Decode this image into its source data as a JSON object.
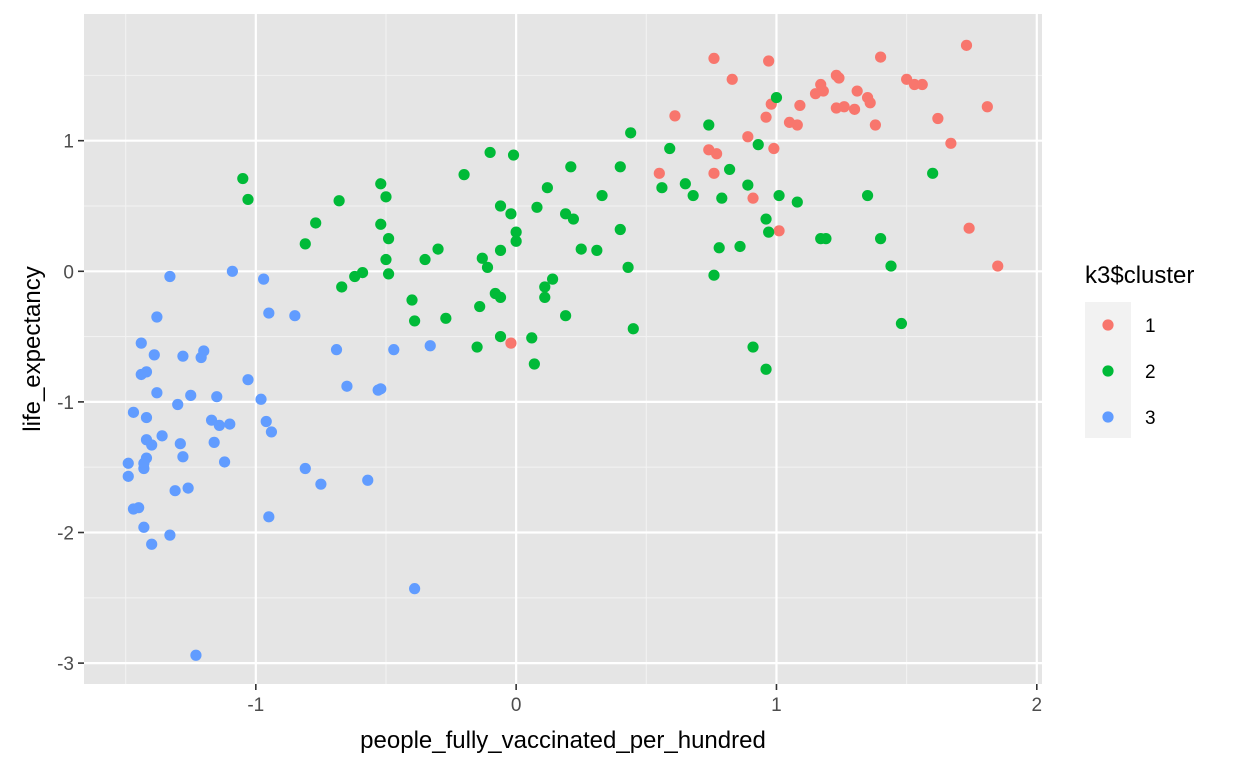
{
  "chart_data": {
    "type": "scatter",
    "title": "",
    "xlabel": "people_fully_vaccinated_per_hundred",
    "ylabel": "life_expectancy",
    "xlim": [
      -1.66,
      2.02
    ],
    "ylim": [
      -3.16,
      1.97
    ],
    "xticks": [
      -1,
      0,
      1,
      2
    ],
    "xtick_labels": [
      "-1",
      "0",
      "1",
      "2"
    ],
    "xminor": [
      -1.5,
      -0.5,
      0.5,
      1.5
    ],
    "yticks": [
      -3,
      -2,
      -1,
      0,
      1
    ],
    "ytick_labels": [
      "-3",
      "-2",
      "-1",
      "0",
      "1"
    ],
    "yminor": [
      -2.5,
      -1.5,
      -0.5,
      0.5,
      1.5
    ],
    "grid": true,
    "panel_background": "#E5E5E5",
    "legend": {
      "title": "k3$cluster",
      "position": "right",
      "entries": [
        "1",
        "2",
        "3"
      ]
    },
    "series": [
      {
        "name": "1",
        "color": "#F8766D",
        "points": [
          [
            0.55,
            0.75
          ],
          [
            0.61,
            1.19
          ],
          [
            0.74,
            0.93
          ],
          [
            0.76,
            1.63
          ],
          [
            0.76,
            0.75
          ],
          [
            0.77,
            0.9
          ],
          [
            0.83,
            1.47
          ],
          [
            0.89,
            1.03
          ],
          [
            0.91,
            0.56
          ],
          [
            0.96,
            1.18
          ],
          [
            0.97,
            1.61
          ],
          [
            0.98,
            1.28
          ],
          [
            0.99,
            0.94
          ],
          [
            1.01,
            0.31
          ],
          [
            1.05,
            1.14
          ],
          [
            1.08,
            1.12
          ],
          [
            1.09,
            1.27
          ],
          [
            1.15,
            1.36
          ],
          [
            1.17,
            1.43
          ],
          [
            1.18,
            1.38
          ],
          [
            1.23,
            1.5
          ],
          [
            1.23,
            1.25
          ],
          [
            1.24,
            1.48
          ],
          [
            1.26,
            1.26
          ],
          [
            1.3,
            1.24
          ],
          [
            1.31,
            1.38
          ],
          [
            1.35,
            1.33
          ],
          [
            1.36,
            1.29
          ],
          [
            1.38,
            1.12
          ],
          [
            1.4,
            1.64
          ],
          [
            1.5,
            1.47
          ],
          [
            1.53,
            1.43
          ],
          [
            1.56,
            1.43
          ],
          [
            1.62,
            1.17
          ],
          [
            1.67,
            0.98
          ],
          [
            1.73,
            1.73
          ],
          [
            1.74,
            0.33
          ],
          [
            1.81,
            1.26
          ],
          [
            1.85,
            0.04
          ],
          [
            -0.02,
            -0.55
          ]
        ]
      },
      {
        "name": "2",
        "color": "#00BA38",
        "points": [
          [
            -1.05,
            0.71
          ],
          [
            -1.03,
            0.55
          ],
          [
            -0.81,
            0.21
          ],
          [
            -0.77,
            0.37
          ],
          [
            -0.68,
            0.54
          ],
          [
            -0.67,
            -0.12
          ],
          [
            -0.62,
            -0.04
          ],
          [
            -0.59,
            -0.01
          ],
          [
            -0.52,
            0.67
          ],
          [
            -0.52,
            0.36
          ],
          [
            -0.5,
            0.57
          ],
          [
            -0.5,
            0.09
          ],
          [
            -0.49,
            0.25
          ],
          [
            -0.49,
            -0.02
          ],
          [
            -0.35,
            0.09
          ],
          [
            -0.4,
            -0.22
          ],
          [
            -0.39,
            -0.38
          ],
          [
            -0.3,
            0.17
          ],
          [
            -0.27,
            -0.36
          ],
          [
            -0.2,
            0.74
          ],
          [
            -0.15,
            -0.58
          ],
          [
            -0.14,
            -0.27
          ],
          [
            -0.13,
            0.1
          ],
          [
            -0.11,
            0.03
          ],
          [
            -0.1,
            0.91
          ],
          [
            -0.08,
            -0.17
          ],
          [
            -0.06,
            0.5
          ],
          [
            -0.06,
            0.16
          ],
          [
            -0.06,
            -0.2
          ],
          [
            -0.06,
            -0.5
          ],
          [
            -0.02,
            0.44
          ],
          [
            -0.01,
            0.89
          ],
          [
            0.0,
            0.3
          ],
          [
            0.0,
            0.23
          ],
          [
            0.06,
            -0.51
          ],
          [
            0.07,
            -0.71
          ],
          [
            0.08,
            0.49
          ],
          [
            0.11,
            -0.12
          ],
          [
            0.11,
            -0.2
          ],
          [
            0.12,
            0.64
          ],
          [
            0.14,
            -0.06
          ],
          [
            0.19,
            0.44
          ],
          [
            0.19,
            -0.34
          ],
          [
            0.21,
            0.8
          ],
          [
            0.22,
            0.4
          ],
          [
            0.25,
            0.17
          ],
          [
            0.31,
            0.16
          ],
          [
            0.33,
            0.58
          ],
          [
            0.4,
            0.8
          ],
          [
            0.4,
            0.32
          ],
          [
            0.43,
            0.03
          ],
          [
            0.44,
            1.06
          ],
          [
            0.45,
            -0.44
          ],
          [
            0.56,
            0.64
          ],
          [
            0.59,
            0.94
          ],
          [
            0.65,
            0.67
          ],
          [
            0.68,
            0.58
          ],
          [
            0.74,
            1.12
          ],
          [
            0.76,
            -0.03
          ],
          [
            0.78,
            0.18
          ],
          [
            0.79,
            0.56
          ],
          [
            0.82,
            0.78
          ],
          [
            0.86,
            0.19
          ],
          [
            0.89,
            0.66
          ],
          [
            0.91,
            -0.58
          ],
          [
            0.93,
            0.97
          ],
          [
            0.96,
            0.4
          ],
          [
            0.96,
            -0.75
          ],
          [
            0.97,
            0.3
          ],
          [
            1.0,
            1.33
          ],
          [
            1.01,
            0.58
          ],
          [
            1.08,
            0.53
          ],
          [
            1.17,
            0.25
          ],
          [
            1.19,
            0.25
          ],
          [
            1.35,
            0.58
          ],
          [
            1.4,
            0.25
          ],
          [
            1.44,
            0.04
          ],
          [
            1.48,
            -0.4
          ],
          [
            1.6,
            0.75
          ]
        ]
      },
      {
        "name": "3",
        "color": "#619CFF",
        "points": [
          [
            -1.49,
            -1.47
          ],
          [
            -1.49,
            -1.57
          ],
          [
            -1.47,
            -1.82
          ],
          [
            -1.47,
            -1.08
          ],
          [
            -1.45,
            -1.81
          ],
          [
            -1.44,
            -0.55
          ],
          [
            -1.44,
            -0.79
          ],
          [
            -1.43,
            -1.96
          ],
          [
            -1.43,
            -1.51
          ],
          [
            -1.43,
            -1.47
          ],
          [
            -1.42,
            -0.77
          ],
          [
            -1.42,
            -1.43
          ],
          [
            -1.42,
            -1.29
          ],
          [
            -1.42,
            -1.12
          ],
          [
            -1.4,
            -1.33
          ],
          [
            -1.4,
            -2.09
          ],
          [
            -1.39,
            -0.64
          ],
          [
            -1.38,
            -0.93
          ],
          [
            -1.38,
            -0.35
          ],
          [
            -1.36,
            -1.26
          ],
          [
            -1.33,
            -2.02
          ],
          [
            -1.33,
            -0.04
          ],
          [
            -1.31,
            -1.68
          ],
          [
            -1.3,
            -1.02
          ],
          [
            -1.29,
            -1.32
          ],
          [
            -1.28,
            -0.65
          ],
          [
            -1.28,
            -1.42
          ],
          [
            -1.26,
            -1.66
          ],
          [
            -1.25,
            -0.95
          ],
          [
            -1.23,
            -2.94
          ],
          [
            -1.21,
            -0.66
          ],
          [
            -1.2,
            -0.61
          ],
          [
            -1.17,
            -1.14
          ],
          [
            -1.16,
            -1.31
          ],
          [
            -1.15,
            -0.96
          ],
          [
            -1.14,
            -1.18
          ],
          [
            -1.12,
            -1.46
          ],
          [
            -1.1,
            -1.17
          ],
          [
            -1.09,
            0.0
          ],
          [
            -1.03,
            -0.83
          ],
          [
            -0.98,
            -0.98
          ],
          [
            -0.97,
            -0.06
          ],
          [
            -0.96,
            -1.15
          ],
          [
            -0.95,
            -1.88
          ],
          [
            -0.95,
            -0.32
          ],
          [
            -0.94,
            -1.23
          ],
          [
            -0.85,
            -0.34
          ],
          [
            -0.81,
            -1.51
          ],
          [
            -0.75,
            -1.63
          ],
          [
            -0.69,
            -0.6
          ],
          [
            -0.65,
            -0.88
          ],
          [
            -0.57,
            -1.6
          ],
          [
            -0.53,
            -0.91
          ],
          [
            -0.52,
            -0.9
          ],
          [
            -0.47,
            -0.6
          ],
          [
            -0.33,
            -0.57
          ],
          [
            -0.39,
            -2.43
          ]
        ]
      }
    ]
  }
}
